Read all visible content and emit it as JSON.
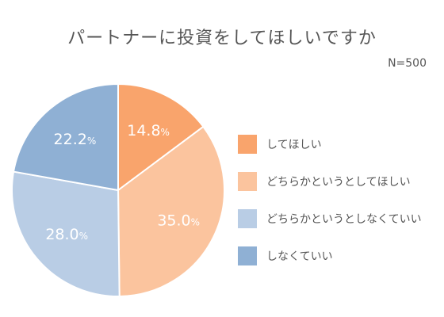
{
  "chart_data": {
    "type": "pie",
    "title": "パートナーに投資をしてほしいですか",
    "note": "N=500",
    "unit": "%",
    "categories": [
      "してほしい",
      "どちらかというとしてほしい",
      "どちらかというとしなくていい",
      "しなくていい"
    ],
    "values": [
      14.8,
      35.0,
      28.0,
      22.2
    ],
    "value_labels": [
      "14.8",
      "35.0",
      "28.0",
      "22.2"
    ],
    "colors": [
      "#f9a46c",
      "#fbc49e",
      "#b9cde5",
      "#8fb0d4"
    ],
    "start": "12 o'clock, clockwise",
    "legend": "right"
  }
}
